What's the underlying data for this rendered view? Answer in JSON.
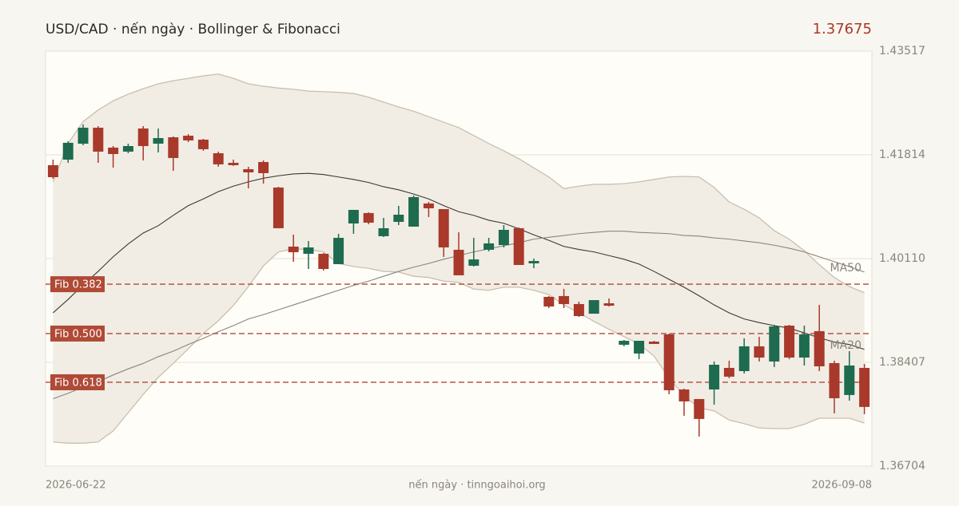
{
  "chart_data": {
    "type": "candlestick",
    "title": "USD/CAD · nến ngày · Bollinger & Fibonacci",
    "last_price": 1.37675,
    "footer": "nến ngày · tinngoaihoi.org",
    "categories": [
      "2026-06-22",
      null,
      null,
      null,
      null,
      null,
      null,
      null,
      null,
      null,
      null,
      null,
      null,
      null,
      null,
      null,
      null,
      null,
      null,
      null,
      null,
      null,
      null,
      null,
      null,
      null,
      null,
      null,
      null,
      null,
      null,
      null,
      null,
      null,
      null,
      null,
      null,
      null,
      null,
      null,
      null,
      null,
      null,
      null,
      null,
      null,
      null,
      null,
      null,
      null,
      null,
      null,
      null,
      null,
      "2026-09-08"
    ],
    "open": [
      1.41644,
      1.41735,
      1.41997,
      1.42259,
      1.41932,
      1.41866,
      1.42246,
      1.41997,
      1.42102,
      1.42128,
      1.42063,
      1.4184,
      1.41683,
      1.41578,
      1.41696,
      1.41277,
      1.40307,
      1.40189,
      1.40189,
      1.40019,
      1.40687,
      1.40858,
      1.40478,
      1.40713,
      1.40635,
      1.41015,
      1.40923,
      1.40255,
      1.39993,
      1.40255,
      1.40333,
      1.40609,
      1.40032,
      1.39482,
      1.39495,
      1.39364,
      1.39206,
      1.39377,
      1.38696,
      1.38552,
      1.38748,
      1.38866,
      1.37962,
      1.37805,
      1.37962,
      1.38316,
      1.38263,
      1.3867,
      1.38421,
      1.3901,
      1.38486,
      1.38919,
      1.38395,
      1.37871,
      1.38316
    ],
    "high": [
      1.41735,
      1.42037,
      1.42311,
      1.42285,
      1.41958,
      1.41997,
      1.42285,
      1.42246,
      1.42115,
      1.42154,
      1.42076,
      1.41866,
      1.41735,
      1.41618,
      1.41722,
      1.4129,
      1.40504,
      1.40399,
      1.40202,
      1.40517,
      1.4091,
      1.40871,
      1.40779,
      1.40976,
      1.41146,
      1.41041,
      1.40923,
      1.40543,
      1.40451,
      1.40451,
      1.40661,
      1.40622,
      1.4011,
      1.39495,
      1.39613,
      1.39403,
      1.39429,
      1.39456,
      1.38774,
      1.38761,
      1.38761,
      1.38879,
      1.37975,
      1.37805,
      1.38421,
      1.38434,
      1.38801,
      1.38827,
      1.39023,
      1.39023,
      1.3901,
      1.39351,
      1.38434,
      1.38591,
      1.38381
    ],
    "low": [
      1.4142,
      1.41683,
      1.41971,
      1.41683,
      1.41604,
      1.4184,
      1.41722,
      1.41853,
      1.41552,
      1.42023,
      1.4188,
      1.41618,
      1.41631,
      1.41264,
      1.41342,
      1.40609,
      1.40058,
      1.3994,
      1.39914,
      1.40019,
      1.40517,
      1.40674,
      1.40464,
      1.40661,
      1.40635,
      1.40792,
      1.40137,
      1.39836,
      1.3998,
      1.40228,
      1.40294,
      1.40006,
      1.39953,
      1.39298,
      1.39298,
      1.39154,
      1.39206,
      1.39324,
      1.3867,
      1.3846,
      1.38709,
      1.37884,
      1.3753,
      1.3719,
      1.37713,
      1.38146,
      1.38224,
      1.38421,
      1.38329,
      1.3846,
      1.38355,
      1.38263,
      1.37569,
      1.37779,
      1.37556
    ],
    "close": [
      1.41447,
      1.42011,
      1.42259,
      1.41866,
      1.41827,
      1.41958,
      1.41958,
      1.42089,
      1.41762,
      1.4205,
      1.41906,
      1.41657,
      1.41644,
      1.41526,
      1.41513,
      1.40609,
      1.40215,
      1.40294,
      1.3994,
      1.40451,
      1.4091,
      1.407,
      1.40609,
      1.40831,
      1.4112,
      1.40936,
      1.40294,
      1.39836,
      1.40097,
      1.4036,
      1.40582,
      1.40006,
      1.40071,
      1.39324,
      1.39364,
      1.39167,
      1.39429,
      1.39337,
      1.38761,
      1.38761,
      1.38709,
      1.37949,
      1.37766,
      1.37478,
      1.38368,
      1.38172,
      1.3867,
      1.38486,
      1.38997,
      1.38486,
      1.38866,
      1.38342,
      1.37818,
      1.38355,
      1.37675
    ],
    "up_color": "#1e6b4f",
    "down_color": "#a8392b",
    "series": [
      {
        "name": "MA20",
        "color": "#3a3835",
        "values": [
          1.3922,
          1.3944,
          1.3968,
          1.399,
          1.4014,
          1.4035,
          1.4053,
          1.4065,
          1.4082,
          1.4098,
          1.4109,
          1.4121,
          1.413,
          1.4137,
          1.4143,
          1.4147,
          1.415,
          1.4151,
          1.4149,
          1.4145,
          1.4141,
          1.4136,
          1.4129,
          1.4124,
          1.4117,
          1.4109,
          1.4098,
          1.4088,
          1.4082,
          1.4074,
          1.4069,
          1.406,
          1.405,
          1.4041,
          1.4031,
          1.4026,
          1.4022,
          1.4016,
          1.401,
          1.4002,
          1.399,
          1.3977,
          1.3964,
          1.395,
          1.3935,
          1.3922,
          1.3912,
          1.3906,
          1.3901,
          1.3897,
          1.3889,
          1.3881,
          1.3874,
          1.387,
          1.3862
        ]
      },
      {
        "name": "MA50",
        "color": "#8a857c",
        "values": [
          1.3781,
          1.379,
          1.38,
          1.3809,
          1.382,
          1.383,
          1.3839,
          1.385,
          1.3859,
          1.387,
          1.388,
          1.3891,
          1.3901,
          1.3912,
          1.3919,
          1.3927,
          1.3935,
          1.3943,
          1.3951,
          1.3959,
          1.3967,
          1.3974,
          1.3982,
          1.399,
          1.3997,
          1.4003,
          1.401,
          1.4016,
          1.4022,
          1.4027,
          1.4032,
          1.4037,
          1.4043,
          1.4046,
          1.4049,
          1.4052,
          1.4054,
          1.4056,
          1.4056,
          1.4054,
          1.4053,
          1.4052,
          1.4049,
          1.4048,
          1.4045,
          1.4043,
          1.404,
          1.4037,
          1.4033,
          1.4028,
          1.4022,
          1.4014,
          1.4006,
          1.3998,
          1.3989
        ]
      }
    ],
    "bollinger": {
      "color": "#c9bfae",
      "fill": "#f1ede5",
      "upper": [
        1.4137,
        1.42,
        1.4236,
        1.4255,
        1.427,
        1.4281,
        1.429,
        1.4298,
        1.4303,
        1.4307,
        1.4311,
        1.4314,
        1.4307,
        1.4298,
        1.4294,
        1.4291,
        1.4289,
        1.4286,
        1.4285,
        1.4284,
        1.4282,
        1.4276,
        1.4268,
        1.426,
        1.4253,
        1.4244,
        1.4235,
        1.4226,
        1.4213,
        1.42,
        1.4188,
        1.4175,
        1.416,
        1.4145,
        1.4126,
        1.413,
        1.4133,
        1.4133,
        1.4134,
        1.4137,
        1.4141,
        1.4145,
        1.4146,
        1.4145,
        1.4128,
        1.4104,
        1.4092,
        1.4078,
        1.4057,
        1.4043,
        1.4024,
        1.4001,
        1.398,
        1.3965,
        1.3955
      ],
      "lower": [
        1.371,
        1.3708,
        1.3708,
        1.371,
        1.3728,
        1.3758,
        1.3788,
        1.3816,
        1.3839,
        1.3863,
        1.3888,
        1.3909,
        1.3934,
        1.3965,
        1.3999,
        1.4022,
        1.4027,
        1.4026,
        1.4022,
        1.4003,
        1.3998,
        1.3995,
        1.399,
        1.3989,
        1.3982,
        1.398,
        1.3974,
        1.3972,
        1.3961,
        1.3959,
        1.3964,
        1.3964,
        1.3959,
        1.3952,
        1.3935,
        1.3922,
        1.3908,
        1.3895,
        1.3883,
        1.3871,
        1.3851,
        1.3815,
        1.3786,
        1.3766,
        1.3761,
        1.3746,
        1.374,
        1.3733,
        1.3732,
        1.3732,
        1.3739,
        1.3749,
        1.3749,
        1.3749,
        1.3741
      ]
    },
    "fib_levels": [
      {
        "label": "Fib 0.382",
        "value": 1.3969
      },
      {
        "label": "Fib 0.500",
        "value": 1.3888
      },
      {
        "label": "Fib 0.618",
        "value": 1.3808
      }
    ],
    "fib_color": "#b04a36",
    "ylim": [
      1.36704,
      1.43517
    ],
    "yticks": [
      1.36704,
      1.38407,
      {
        "value": 1.4011,
        "label": "1.40110"
      },
      1.41814,
      1.43517
    ],
    "grid": true
  }
}
